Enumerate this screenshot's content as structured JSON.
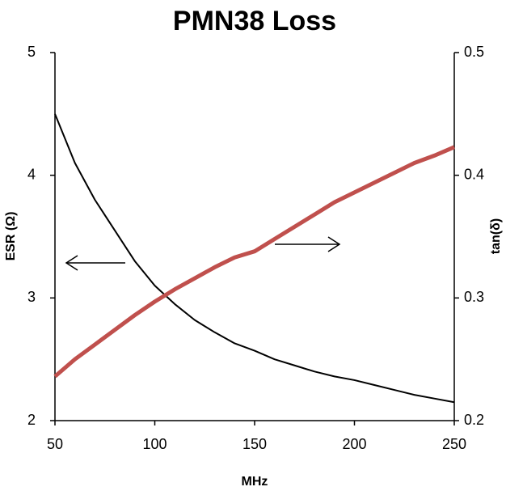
{
  "chart_data": {
    "type": "line",
    "title": "PMN38 Loss",
    "x_label": "MHz",
    "y_label": "ESR (Ω)",
    "y2_label": "tan(δ)",
    "x": [
      50,
      60,
      70,
      80,
      90,
      100,
      110,
      120,
      130,
      140,
      150,
      160,
      170,
      180,
      190,
      200,
      210,
      220,
      230,
      240,
      250
    ],
    "series": [
      {
        "color": "#000000",
        "values": [
          4.5,
          4.1,
          3.8,
          3.55,
          3.3,
          3.1,
          2.95,
          2.82,
          2.72,
          2.63,
          2.57,
          2.5,
          2.45,
          2.4,
          2.36,
          2.33,
          2.29,
          2.25,
          2.21,
          2.18,
          2.15
        ]
      },
      {
        "color": "#c0504d",
        "axis": "y2",
        "values": [
          0.236,
          0.25,
          0.262,
          0.274,
          0.286,
          0.297,
          0.307,
          0.316,
          0.325,
          0.333,
          0.338,
          0.348,
          0.358,
          0.368,
          0.378,
          0.386,
          0.394,
          0.402,
          0.41,
          0.416,
          0.423
        ]
      }
    ],
    "xlim": [
      50,
      250
    ],
    "xticks": [
      50,
      100,
      150,
      200,
      250
    ],
    "ylim": [
      2,
      5
    ],
    "yticks": [
      2,
      3,
      4,
      5
    ],
    "y2lim": [
      0.2,
      0.5
    ],
    "y2ticks": [
      0.2,
      0.3,
      0.4,
      0.5
    ]
  }
}
